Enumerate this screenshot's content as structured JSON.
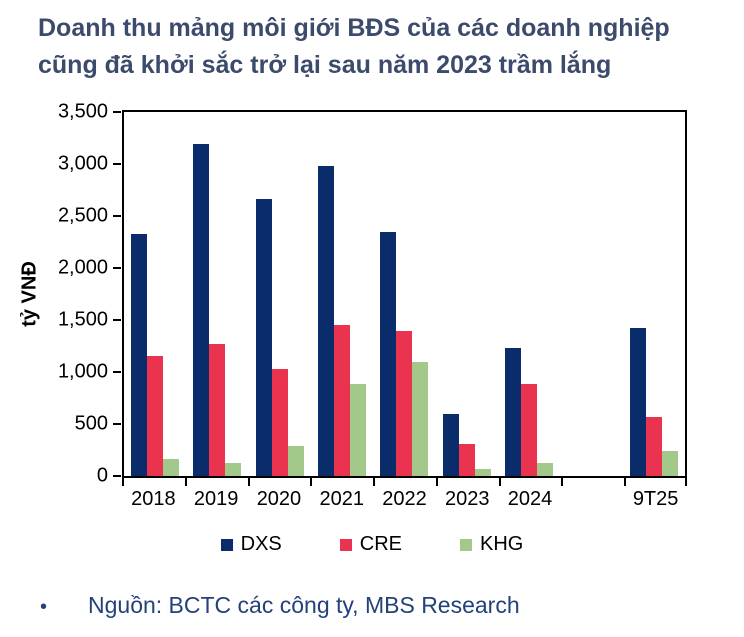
{
  "header": {
    "title_line1": "Doanh thu mảng môi giới BĐS của các doanh nghiệp",
    "title_line2": "cũng đã khởi sắc trở lại sau năm 2023 trầm lắng",
    "title_color": "#3C4B6B"
  },
  "chart_data": {
    "type": "bar",
    "title": "Doanh thu mảng môi giới BĐS của các doanh nghiệp cũng đã khởi sắc trở lại sau năm 2023 trầm lắng",
    "xlabel": "",
    "ylabel": "tỷ VNĐ",
    "ylim": [
      0,
      3500
    ],
    "ytick_step": 500,
    "grid": false,
    "legend_position": "bottom",
    "categories": [
      "2018",
      "2019",
      "2020",
      "2021",
      "2022",
      "2023",
      "2024",
      "",
      "9T25"
    ],
    "series": [
      {
        "name": "DXS",
        "color": "#0A2C6A",
        "values": [
          2330,
          3190,
          2665,
          2985,
          2345,
          595,
          1230,
          null,
          1425
        ]
      },
      {
        "name": "CRE",
        "color": "#E9334F",
        "values": [
          1155,
          1270,
          1025,
          1455,
          1390,
          310,
          880,
          null,
          565
        ]
      },
      {
        "name": "KHG",
        "color": "#A2C88A",
        "values": [
          160,
          125,
          290,
          880,
          1095,
          70,
          125,
          null,
          245
        ]
      }
    ]
  },
  "footer": {
    "bullet": "•",
    "text": "Nguồn: BCTC các công ty, MBS Research",
    "color": "#24417A"
  }
}
